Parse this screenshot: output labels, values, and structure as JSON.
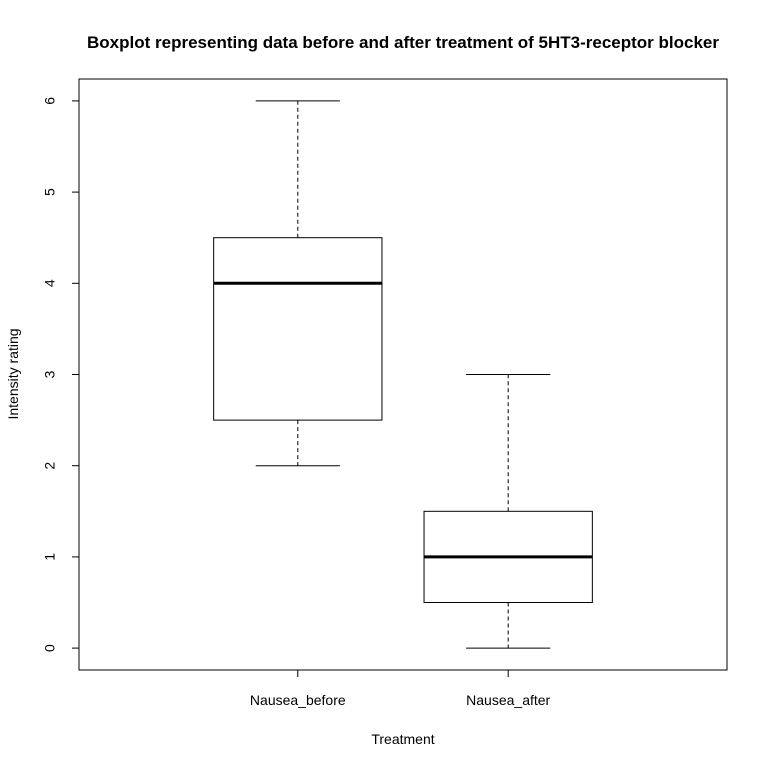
{
  "chart_data": {
    "type": "boxplot",
    "title": "Boxplot representing data before and after treatment of 5HT3-receptor blocker",
    "xlabel": "Treatment",
    "ylabel": "Intensity rating",
    "ylim": [
      -0.24,
      6.24
    ],
    "y_ticks": [
      "0",
      "1",
      "2",
      "3",
      "4",
      "5",
      "6"
    ],
    "grid": false,
    "legend": "none",
    "categories": [
      "Nausea_before",
      "Nausea_after"
    ],
    "boxes": [
      {
        "name": "Nausea_before",
        "whisker_low": 2,
        "q1": 2.5,
        "median": 4,
        "q3": 4.5,
        "whisker_high": 6
      },
      {
        "name": "Nausea_after",
        "whisker_low": 0,
        "q1": 0.5,
        "median": 1,
        "q3": 1.5,
        "whisker_high": 3
      }
    ]
  }
}
